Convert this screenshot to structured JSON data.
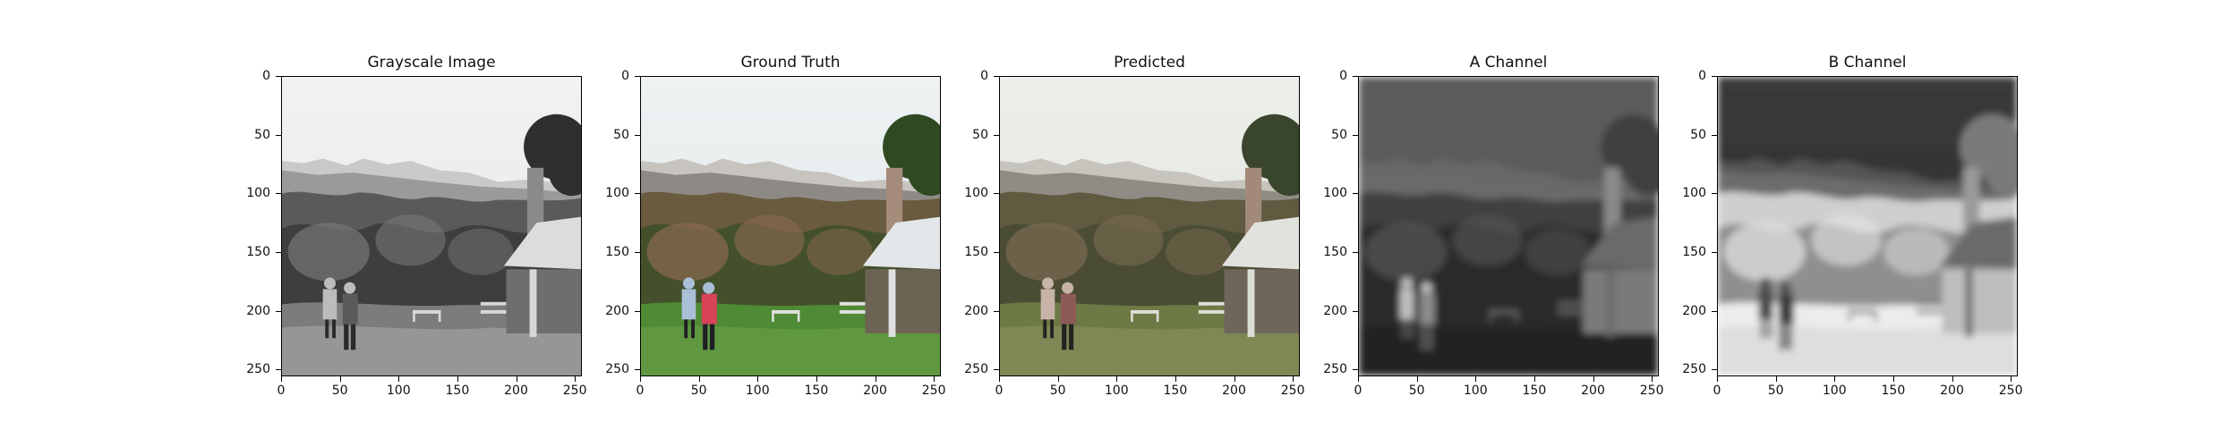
{
  "figure": {
    "panels": [
      {
        "title": "Grayscale Image",
        "image_semantic": "grayscale-outdoor-scene",
        "style": "gray",
        "yticks": [
          "0",
          "50",
          "100",
          "150",
          "200",
          "250"
        ],
        "xticks": [
          "0",
          "50",
          "100",
          "150",
          "200",
          "250"
        ]
      },
      {
        "title": "Ground Truth",
        "image_semantic": "color-outdoor-scene",
        "style": "truth",
        "yticks": [
          "0",
          "50",
          "100",
          "150",
          "200",
          "250"
        ],
        "xticks": [
          "0",
          "50",
          "100",
          "150",
          "200",
          "250"
        ]
      },
      {
        "title": "Predicted",
        "image_semantic": "predicted-color-outdoor-scene",
        "style": "pred",
        "yticks": [
          "0",
          "50",
          "100",
          "150",
          "200",
          "250"
        ],
        "xticks": [
          "0",
          "50",
          "100",
          "150",
          "200",
          "250"
        ]
      },
      {
        "title": "A Channel",
        "image_semantic": "a-channel-map",
        "style": "a",
        "yticks": [
          "0",
          "50",
          "100",
          "150",
          "200",
          "250"
        ],
        "xticks": [
          "0",
          "50",
          "100",
          "150",
          "200",
          "250"
        ]
      },
      {
        "title": "B Channel",
        "image_semantic": "b-channel-map",
        "style": "b",
        "yticks": [
          "0",
          "50",
          "100",
          "150",
          "200",
          "250"
        ],
        "xticks": [
          "0",
          "50",
          "100",
          "150",
          "200",
          "250"
        ]
      }
    ],
    "tick_values": [
      0,
      50,
      100,
      150,
      200,
      250
    ],
    "axis_max": 256
  }
}
